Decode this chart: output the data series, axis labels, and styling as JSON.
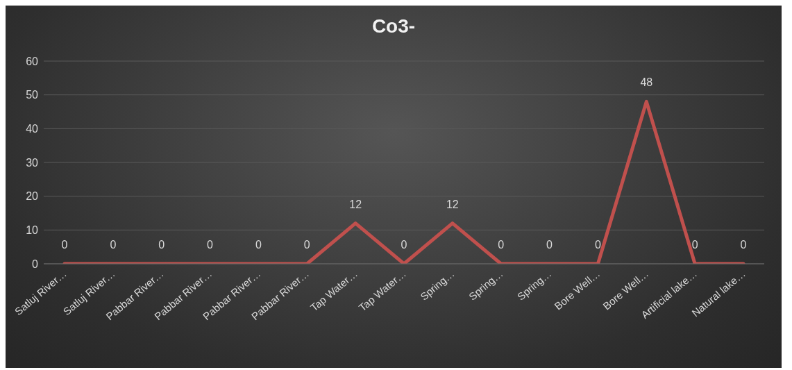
{
  "chart_data": {
    "type": "line",
    "title": "Co3-",
    "categories": [
      "Satluj River…",
      "Satluj River…",
      "Pabbar River…",
      "Pabbar River…",
      "Pabbar River…",
      "Pabbar River…",
      "Tap Water…",
      "Tap Water…",
      "Spring…",
      "Spring…",
      "Spring…",
      "Bore Well…",
      "Bore Well…",
      "Artificial lake…",
      "Natural lake…"
    ],
    "series": [
      {
        "color": "#c0504d",
        "values": [
          0,
          0,
          0,
          0,
          0,
          0,
          12,
          0,
          12,
          0,
          0,
          0,
          48,
          0,
          0
        ]
      }
    ],
    "ylim": [
      0,
      60
    ],
    "yticks": [
      0,
      10,
      20,
      30,
      40,
      50,
      60
    ],
    "grid": "y",
    "data_labels": true,
    "marker": "none",
    "line_style": "solid"
  }
}
